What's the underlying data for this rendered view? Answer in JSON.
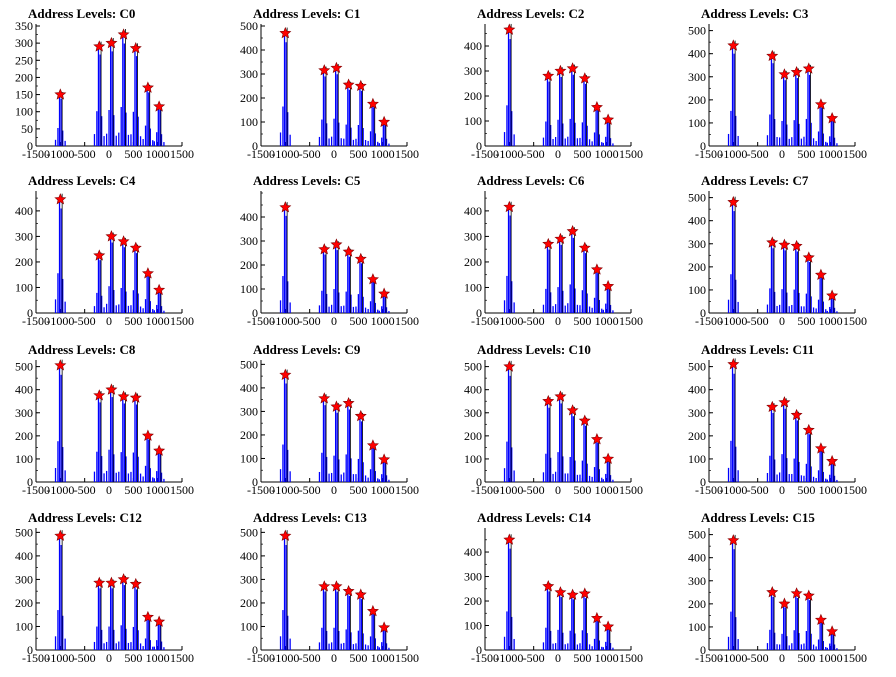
{
  "chart_data": [
    {
      "type": "bar",
      "title": "Address Levels: C0",
      "xlim": [
        -1500,
        1500
      ],
      "ylim": [
        0,
        350
      ],
      "x_ticks": [
        -1500,
        -1000,
        -500,
        0,
        500,
        1000,
        1500
      ],
      "y_ticks": [
        0,
        50,
        100,
        150,
        200,
        250,
        300,
        350
      ],
      "peaks": [
        {
          "x": -1000,
          "y": 150
        },
        {
          "x": -200,
          "y": 290
        },
        {
          "x": 50,
          "y": 300
        },
        {
          "x": 300,
          "y": 325
        },
        {
          "x": 550,
          "y": 285
        },
        {
          "x": 800,
          "y": 170
        },
        {
          "x": 1030,
          "y": 115
        }
      ]
    },
    {
      "type": "bar",
      "title": "Address Levels: C1",
      "xlim": [
        -1500,
        1500
      ],
      "ylim": [
        0,
        500
      ],
      "x_ticks": [
        -1500,
        -1000,
        -500,
        0,
        500,
        1000,
        1500
      ],
      "y_ticks": [
        0,
        100,
        200,
        300,
        400,
        500
      ],
      "peaks": [
        {
          "x": -1000,
          "y": 470
        },
        {
          "x": -200,
          "y": 315
        },
        {
          "x": 50,
          "y": 325
        },
        {
          "x": 300,
          "y": 255
        },
        {
          "x": 550,
          "y": 250
        },
        {
          "x": 800,
          "y": 175
        },
        {
          "x": 1030,
          "y": 100
        }
      ]
    },
    {
      "type": "bar",
      "title": "Address Levels: C2",
      "xlim": [
        -1500,
        1500
      ],
      "ylim": [
        0,
        480
      ],
      "x_ticks": [
        -1500,
        -1000,
        -500,
        0,
        500,
        1000,
        1500
      ],
      "y_ticks": [
        0,
        100,
        200,
        300,
        400
      ],
      "peaks": [
        {
          "x": -1000,
          "y": 465
        },
        {
          "x": -200,
          "y": 280
        },
        {
          "x": 50,
          "y": 300
        },
        {
          "x": 300,
          "y": 310
        },
        {
          "x": 550,
          "y": 270
        },
        {
          "x": 800,
          "y": 155
        },
        {
          "x": 1030,
          "y": 105
        }
      ]
    },
    {
      "type": "bar",
      "title": "Address Levels: C3",
      "xlim": [
        -1500,
        1500
      ],
      "ylim": [
        0,
        520
      ],
      "x_ticks": [
        -1500,
        -1000,
        -500,
        0,
        500,
        1000,
        1500
      ],
      "y_ticks": [
        0,
        100,
        200,
        300,
        400,
        500
      ],
      "peaks": [
        {
          "x": -1000,
          "y": 435
        },
        {
          "x": -200,
          "y": 390
        },
        {
          "x": 50,
          "y": 310
        },
        {
          "x": 300,
          "y": 320
        },
        {
          "x": 550,
          "y": 335
        },
        {
          "x": 800,
          "y": 180
        },
        {
          "x": 1030,
          "y": 120
        }
      ]
    },
    {
      "type": "bar",
      "title": "Address Levels: C4",
      "xlim": [
        -1500,
        1500
      ],
      "ylim": [
        0,
        470
      ],
      "x_ticks": [
        -1500,
        -1000,
        -500,
        0,
        500,
        1000,
        1500
      ],
      "y_ticks": [
        0,
        100,
        200,
        300,
        400
      ],
      "peaks": [
        {
          "x": -1000,
          "y": 445
        },
        {
          "x": -200,
          "y": 225
        },
        {
          "x": 50,
          "y": 300
        },
        {
          "x": 300,
          "y": 280
        },
        {
          "x": 550,
          "y": 255
        },
        {
          "x": 800,
          "y": 155
        },
        {
          "x": 1030,
          "y": 90
        }
      ]
    },
    {
      "type": "bar",
      "title": "Address Levels: C5",
      "xlim": [
        -1500,
        1500
      ],
      "ylim": [
        0,
        500
      ],
      "x_ticks": [
        -1500,
        -1000,
        -500,
        0,
        500,
        1000,
        1500
      ],
      "y_ticks": [
        0,
        100,
        200,
        300,
        400
      ],
      "peaks": [
        {
          "x": -1000,
          "y": 440
        },
        {
          "x": -200,
          "y": 265
        },
        {
          "x": 50,
          "y": 285
        },
        {
          "x": 300,
          "y": 255
        },
        {
          "x": 550,
          "y": 225
        },
        {
          "x": 800,
          "y": 140
        },
        {
          "x": 1030,
          "y": 80
        }
      ]
    },
    {
      "type": "bar",
      "title": "Address Levels: C6",
      "xlim": [
        -1500,
        1500
      ],
      "ylim": [
        0,
        470
      ],
      "x_ticks": [
        -1500,
        -1000,
        -500,
        0,
        500,
        1000,
        1500
      ],
      "y_ticks": [
        0,
        100,
        200,
        300,
        400
      ],
      "peaks": [
        {
          "x": -1000,
          "y": 415
        },
        {
          "x": -200,
          "y": 270
        },
        {
          "x": 50,
          "y": 290
        },
        {
          "x": 300,
          "y": 320
        },
        {
          "x": 550,
          "y": 255
        },
        {
          "x": 800,
          "y": 170
        },
        {
          "x": 1030,
          "y": 105
        }
      ]
    },
    {
      "type": "bar",
      "title": "Address Levels: C7",
      "xlim": [
        -1500,
        1500
      ],
      "ylim": [
        0,
        520
      ],
      "x_ticks": [
        -1500,
        -1000,
        -500,
        0,
        500,
        1000,
        1500
      ],
      "y_ticks": [
        0,
        100,
        200,
        300,
        400,
        500
      ],
      "peaks": [
        {
          "x": -1000,
          "y": 480
        },
        {
          "x": -200,
          "y": 305
        },
        {
          "x": 50,
          "y": 295
        },
        {
          "x": 300,
          "y": 290
        },
        {
          "x": 550,
          "y": 240
        },
        {
          "x": 800,
          "y": 165
        },
        {
          "x": 1030,
          "y": 75
        }
      ]
    },
    {
      "type": "bar",
      "title": "Address Levels: C8",
      "xlim": [
        -1500,
        1500
      ],
      "ylim": [
        0,
        520
      ],
      "x_ticks": [
        -1500,
        -1000,
        -500,
        0,
        500,
        1000,
        1500
      ],
      "y_ticks": [
        0,
        100,
        200,
        300,
        400,
        500
      ],
      "peaks": [
        {
          "x": -1000,
          "y": 505
        },
        {
          "x": -200,
          "y": 375
        },
        {
          "x": 50,
          "y": 400
        },
        {
          "x": 300,
          "y": 370
        },
        {
          "x": 550,
          "y": 365
        },
        {
          "x": 800,
          "y": 200
        },
        {
          "x": 1030,
          "y": 135
        }
      ]
    },
    {
      "type": "bar",
      "title": "Address Levels: C9",
      "xlim": [
        -1500,
        1500
      ],
      "ylim": [
        0,
        510
      ],
      "x_ticks": [
        -1500,
        -1000,
        -500,
        0,
        500,
        1000,
        1500
      ],
      "y_ticks": [
        0,
        100,
        200,
        300,
        400,
        500
      ],
      "peaks": [
        {
          "x": -1000,
          "y": 455
        },
        {
          "x": -200,
          "y": 355
        },
        {
          "x": 50,
          "y": 320
        },
        {
          "x": 300,
          "y": 335
        },
        {
          "x": 550,
          "y": 280
        },
        {
          "x": 800,
          "y": 155
        },
        {
          "x": 1030,
          "y": 95
        }
      ]
    },
    {
      "type": "bar",
      "title": "Address Levels: C10",
      "xlim": [
        -1500,
        1500
      ],
      "ylim": [
        0,
        520
      ],
      "x_ticks": [
        -1500,
        -1000,
        -500,
        0,
        500,
        1000,
        1500
      ],
      "y_ticks": [
        0,
        100,
        200,
        300,
        400,
        500
      ],
      "peaks": [
        {
          "x": -1000,
          "y": 500
        },
        {
          "x": -200,
          "y": 350
        },
        {
          "x": 50,
          "y": 370
        },
        {
          "x": 300,
          "y": 310
        },
        {
          "x": 550,
          "y": 265
        },
        {
          "x": 800,
          "y": 185
        },
        {
          "x": 1030,
          "y": 100
        }
      ]
    },
    {
      "type": "bar",
      "title": "Address Levels: C11",
      "xlim": [
        -1500,
        1500
      ],
      "ylim": [
        0,
        520
      ],
      "x_ticks": [
        -1500,
        -1000,
        -500,
        0,
        500,
        1000,
        1500
      ],
      "y_ticks": [
        0,
        100,
        200,
        300,
        400,
        500
      ],
      "peaks": [
        {
          "x": -1000,
          "y": 510
        },
        {
          "x": -200,
          "y": 325
        },
        {
          "x": 50,
          "y": 345
        },
        {
          "x": 300,
          "y": 290
        },
        {
          "x": 550,
          "y": 225
        },
        {
          "x": 800,
          "y": 145
        },
        {
          "x": 1030,
          "y": 90
        }
      ]
    },
    {
      "type": "bar",
      "title": "Address Levels: C12",
      "xlim": [
        -1500,
        1500
      ],
      "ylim": [
        0,
        510
      ],
      "x_ticks": [
        -1500,
        -1000,
        -500,
        0,
        500,
        1000,
        1500
      ],
      "y_ticks": [
        0,
        100,
        200,
        300,
        400,
        500
      ],
      "peaks": [
        {
          "x": -1000,
          "y": 485
        },
        {
          "x": -200,
          "y": 285
        },
        {
          "x": 50,
          "y": 285
        },
        {
          "x": 300,
          "y": 300
        },
        {
          "x": 550,
          "y": 280
        },
        {
          "x": 800,
          "y": 140
        },
        {
          "x": 1030,
          "y": 120
        }
      ]
    },
    {
      "type": "bar",
      "title": "Address Levels: C13",
      "xlim": [
        -1500,
        1500
      ],
      "ylim": [
        0,
        510
      ],
      "x_ticks": [
        -1500,
        -1000,
        -500,
        0,
        500,
        1000,
        1500
      ],
      "y_ticks": [
        0,
        100,
        200,
        300,
        400,
        500
      ],
      "peaks": [
        {
          "x": -1000,
          "y": 485
        },
        {
          "x": -200,
          "y": 270
        },
        {
          "x": 50,
          "y": 270
        },
        {
          "x": 300,
          "y": 250
        },
        {
          "x": 550,
          "y": 235
        },
        {
          "x": 800,
          "y": 165
        },
        {
          "x": 1030,
          "y": 95
        }
      ]
    },
    {
      "type": "bar",
      "title": "Address Levels: C14",
      "xlim": [
        -1500,
        1500
      ],
      "ylim": [
        0,
        490
      ],
      "x_ticks": [
        -1500,
        -1000,
        -500,
        0,
        500,
        1000,
        1500
      ],
      "y_ticks": [
        0,
        100,
        200,
        300,
        400
      ],
      "peaks": [
        {
          "x": -1000,
          "y": 450
        },
        {
          "x": -200,
          "y": 260
        },
        {
          "x": 50,
          "y": 235
        },
        {
          "x": 300,
          "y": 225
        },
        {
          "x": 550,
          "y": 230
        },
        {
          "x": 800,
          "y": 130
        },
        {
          "x": 1030,
          "y": 95
        }
      ]
    },
    {
      "type": "bar",
      "title": "Address Levels: C15",
      "xlim": [
        -1500,
        1500
      ],
      "ylim": [
        0,
        520
      ],
      "x_ticks": [
        -1500,
        -1000,
        -500,
        0,
        500,
        1000,
        1500
      ],
      "y_ticks": [
        0,
        100,
        200,
        300,
        400,
        500
      ],
      "peaks": [
        {
          "x": -1000,
          "y": 475
        },
        {
          "x": -200,
          "y": 250
        },
        {
          "x": 50,
          "y": 200
        },
        {
          "x": 300,
          "y": 245
        },
        {
          "x": 550,
          "y": 235
        },
        {
          "x": 800,
          "y": 130
        },
        {
          "x": 1030,
          "y": 80
        }
      ]
    }
  ],
  "colors": {
    "bar": "#0000ff",
    "bar_dark": "#000000",
    "marker": "#ff0000",
    "axis": "#000000"
  }
}
